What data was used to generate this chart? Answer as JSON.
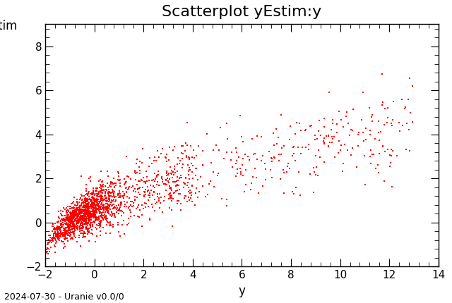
{
  "title": "Scatterplot yEstim:y",
  "xlabel": "y",
  "ylabel": "yEstim",
  "xlim": [
    -2,
    14
  ],
  "ylim": [
    -2,
    9
  ],
  "xticks": [
    -2,
    0,
    2,
    4,
    6,
    8,
    10,
    12,
    14
  ],
  "yticks": [
    -2,
    0,
    2,
    4,
    6,
    8
  ],
  "point_color": "#ff0000",
  "marker": "s",
  "markersize": 2.0,
  "n_points": 2000,
  "seed": 42,
  "watermark": "2024-07-30 - Uranie v0.0/0",
  "bg_color": "#ffffff",
  "title_fontsize": 16,
  "label_fontsize": 12,
  "tick_fontsize": 11,
  "watermark_fontsize": 9
}
